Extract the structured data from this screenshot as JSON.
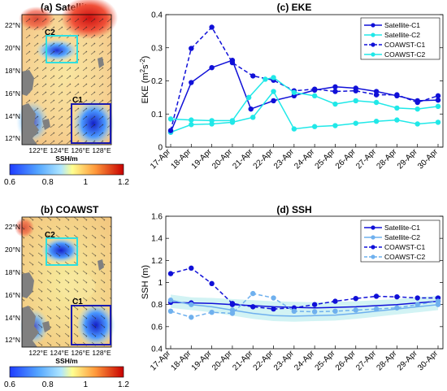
{
  "colors": {
    "satellite_c1": "#1010d8",
    "satellite_c2": "#20e8e8",
    "coawst_c1": "#1010d8",
    "coawst_c2": "#20e8e8",
    "ssh_c2": "#6fb0ee",
    "box_c1": "#1a1ab0",
    "box_c2": "#30e0e0"
  },
  "maps": [
    {
      "title": "(a) Satellite",
      "lat_ticks": [
        "22°N",
        "20°N",
        "18°N",
        "16°N",
        "14°N",
        "12°N"
      ],
      "lon_ticks": [
        "122°E",
        "124°E",
        "126°E",
        "128°E"
      ],
      "regions": [
        "C2",
        "C1"
      ],
      "colorbar": {
        "label": "SSH/m",
        "ticks": [
          "0.6",
          "0.8",
          "1",
          "1.2"
        ]
      }
    },
    {
      "title": "(b) COAWST",
      "lat_ticks": [
        "22°N",
        "20°N",
        "18°N",
        "16°N",
        "14°N",
        "12°N"
      ],
      "lon_ticks": [
        "122°E",
        "124°E",
        "126°E",
        "128°E"
      ],
      "regions": [
        "C2",
        "C1"
      ],
      "colorbar": {
        "label": "SSH/m",
        "ticks": [
          "0.6",
          "0.8",
          "1",
          "1.2"
        ]
      }
    }
  ],
  "chart_data": [
    {
      "type": "line",
      "title": "(c) EKE",
      "ylabel_main": "EKE (m",
      "ylabel_sup1": "2",
      "ylabel_mid": "s",
      "ylabel_sup2": "-2",
      "ylabel_end": ")",
      "categories": [
        "17-Apr",
        "18-Apr",
        "19-Apr",
        "20-Apr",
        "21-Apr",
        "22-Apr",
        "23-Apr",
        "24-Apr",
        "25-Apr",
        "26-Apr",
        "27-Apr",
        "28-Apr",
        "29-Apr",
        "30-Apr"
      ],
      "ylim": [
        0,
        0.4
      ],
      "yticks": [
        "0",
        "0.1",
        "0.2",
        "0.3",
        "0.4"
      ],
      "grid": false,
      "legend_position": "top-right",
      "series": [
        {
          "name": "Satellite-C1",
          "style": "solid",
          "color": "#1010d8",
          "x": [
            0,
            1,
            2,
            3,
            3.9,
            5,
            6,
            7,
            8,
            9,
            10,
            11,
            12,
            13
          ],
          "values": [
            0.045,
            0.195,
            0.24,
            0.262,
            0.115,
            0.14,
            0.155,
            0.172,
            0.182,
            0.178,
            0.168,
            0.155,
            0.14,
            0.142
          ]
        },
        {
          "name": "Satellite-C2",
          "style": "solid",
          "color": "#20e8e8",
          "x": [
            0,
            1,
            2,
            3,
            4,
            5,
            6,
            7,
            8,
            9,
            10,
            11,
            12,
            13
          ],
          "values": [
            0.045,
            0.068,
            0.07,
            0.075,
            0.09,
            0.168,
            0.055,
            0.062,
            0.065,
            0.072,
            0.078,
            0.082,
            0.07,
            0.075
          ]
        },
        {
          "name": "COAWST-C1",
          "style": "dashed",
          "color": "#1010d8",
          "x": [
            0,
            1,
            2,
            3,
            4,
            5,
            6,
            7,
            8,
            9,
            10,
            11,
            12,
            13
          ],
          "values": [
            0.05,
            0.298,
            0.362,
            0.255,
            0.215,
            0.202,
            0.17,
            0.175,
            0.168,
            0.17,
            0.158,
            0.158,
            0.135,
            0.155
          ]
        },
        {
          "name": "COAWST-C2",
          "style": "solid",
          "color": "#20e8e8",
          "x": [
            0,
            1,
            2,
            3,
            3.8,
            4.6,
            5,
            6,
            7,
            8,
            9,
            10,
            11,
            12,
            13
          ],
          "values": [
            0.085,
            0.082,
            0.08,
            0.08,
            0.15,
            0.205,
            0.21,
            0.165,
            0.155,
            0.13,
            0.14,
            0.135,
            0.118,
            0.115,
            0.123
          ]
        }
      ]
    },
    {
      "type": "line",
      "title": "(d) SSH",
      "ylabel": "SSH (m)",
      "categories": [
        "17-Apr",
        "18-Apr",
        "19-Apr",
        "20-Apr",
        "21-Apr",
        "22-Apr",
        "23-Apr",
        "24-Apr",
        "25-Apr",
        "26-Apr",
        "27-Apr",
        "28-Apr",
        "29-Apr",
        "30-Apr"
      ],
      "ylim": [
        0.4,
        1.6
      ],
      "yticks": [
        "0.4",
        "0.6",
        "0.8",
        "1",
        "1.2",
        "1.4",
        "1.6"
      ],
      "grid": false,
      "legend_position": "top-right",
      "series": [
        {
          "name": "Satellite-C1",
          "style": "solid",
          "color": "#1010d8",
          "markers": [
            0,
            1,
            3,
            13
          ],
          "x": [
            0,
            1,
            2,
            3,
            4,
            5,
            6,
            7,
            8,
            9,
            10,
            11,
            12,
            13
          ],
          "values": [
            0.82,
            0.815,
            0.81,
            0.8,
            0.79,
            0.78,
            0.775,
            0.77,
            0.775,
            0.78,
            0.79,
            0.8,
            0.815,
            0.83
          ]
        },
        {
          "name": "Satellite-C2",
          "style": "solid",
          "color": "#6fb0ee",
          "markers": [
            0,
            1,
            3,
            13
          ],
          "x": [
            0,
            1,
            2,
            3,
            4,
            5,
            6,
            7,
            8,
            9,
            10,
            11,
            12,
            13
          ],
          "values": [
            0.84,
            0.8,
            0.78,
            0.75,
            0.72,
            0.7,
            0.695,
            0.7,
            0.705,
            0.72,
            0.74,
            0.76,
            0.78,
            0.8
          ]
        },
        {
          "name": "COAWST-C1",
          "style": "dashed",
          "color": "#1010d8",
          "x": [
            0,
            1,
            2,
            3,
            4,
            5,
            6,
            7,
            8,
            9,
            10,
            11,
            12,
            13
          ],
          "values": [
            1.08,
            1.13,
            0.99,
            0.81,
            0.78,
            0.76,
            0.77,
            0.8,
            0.83,
            0.855,
            0.875,
            0.87,
            0.86,
            0.86
          ]
        },
        {
          "name": "COAWST-C2",
          "style": "dashed",
          "color": "#6fb0ee",
          "x": [
            0,
            1,
            2,
            3,
            4,
            5,
            6,
            7,
            8,
            9,
            10,
            11,
            12,
            13
          ],
          "values": [
            0.74,
            0.685,
            0.73,
            0.72,
            0.9,
            0.86,
            0.74,
            0.735,
            0.74,
            0.75,
            0.76,
            0.77,
            0.8,
            0.83
          ]
        }
      ]
    }
  ]
}
